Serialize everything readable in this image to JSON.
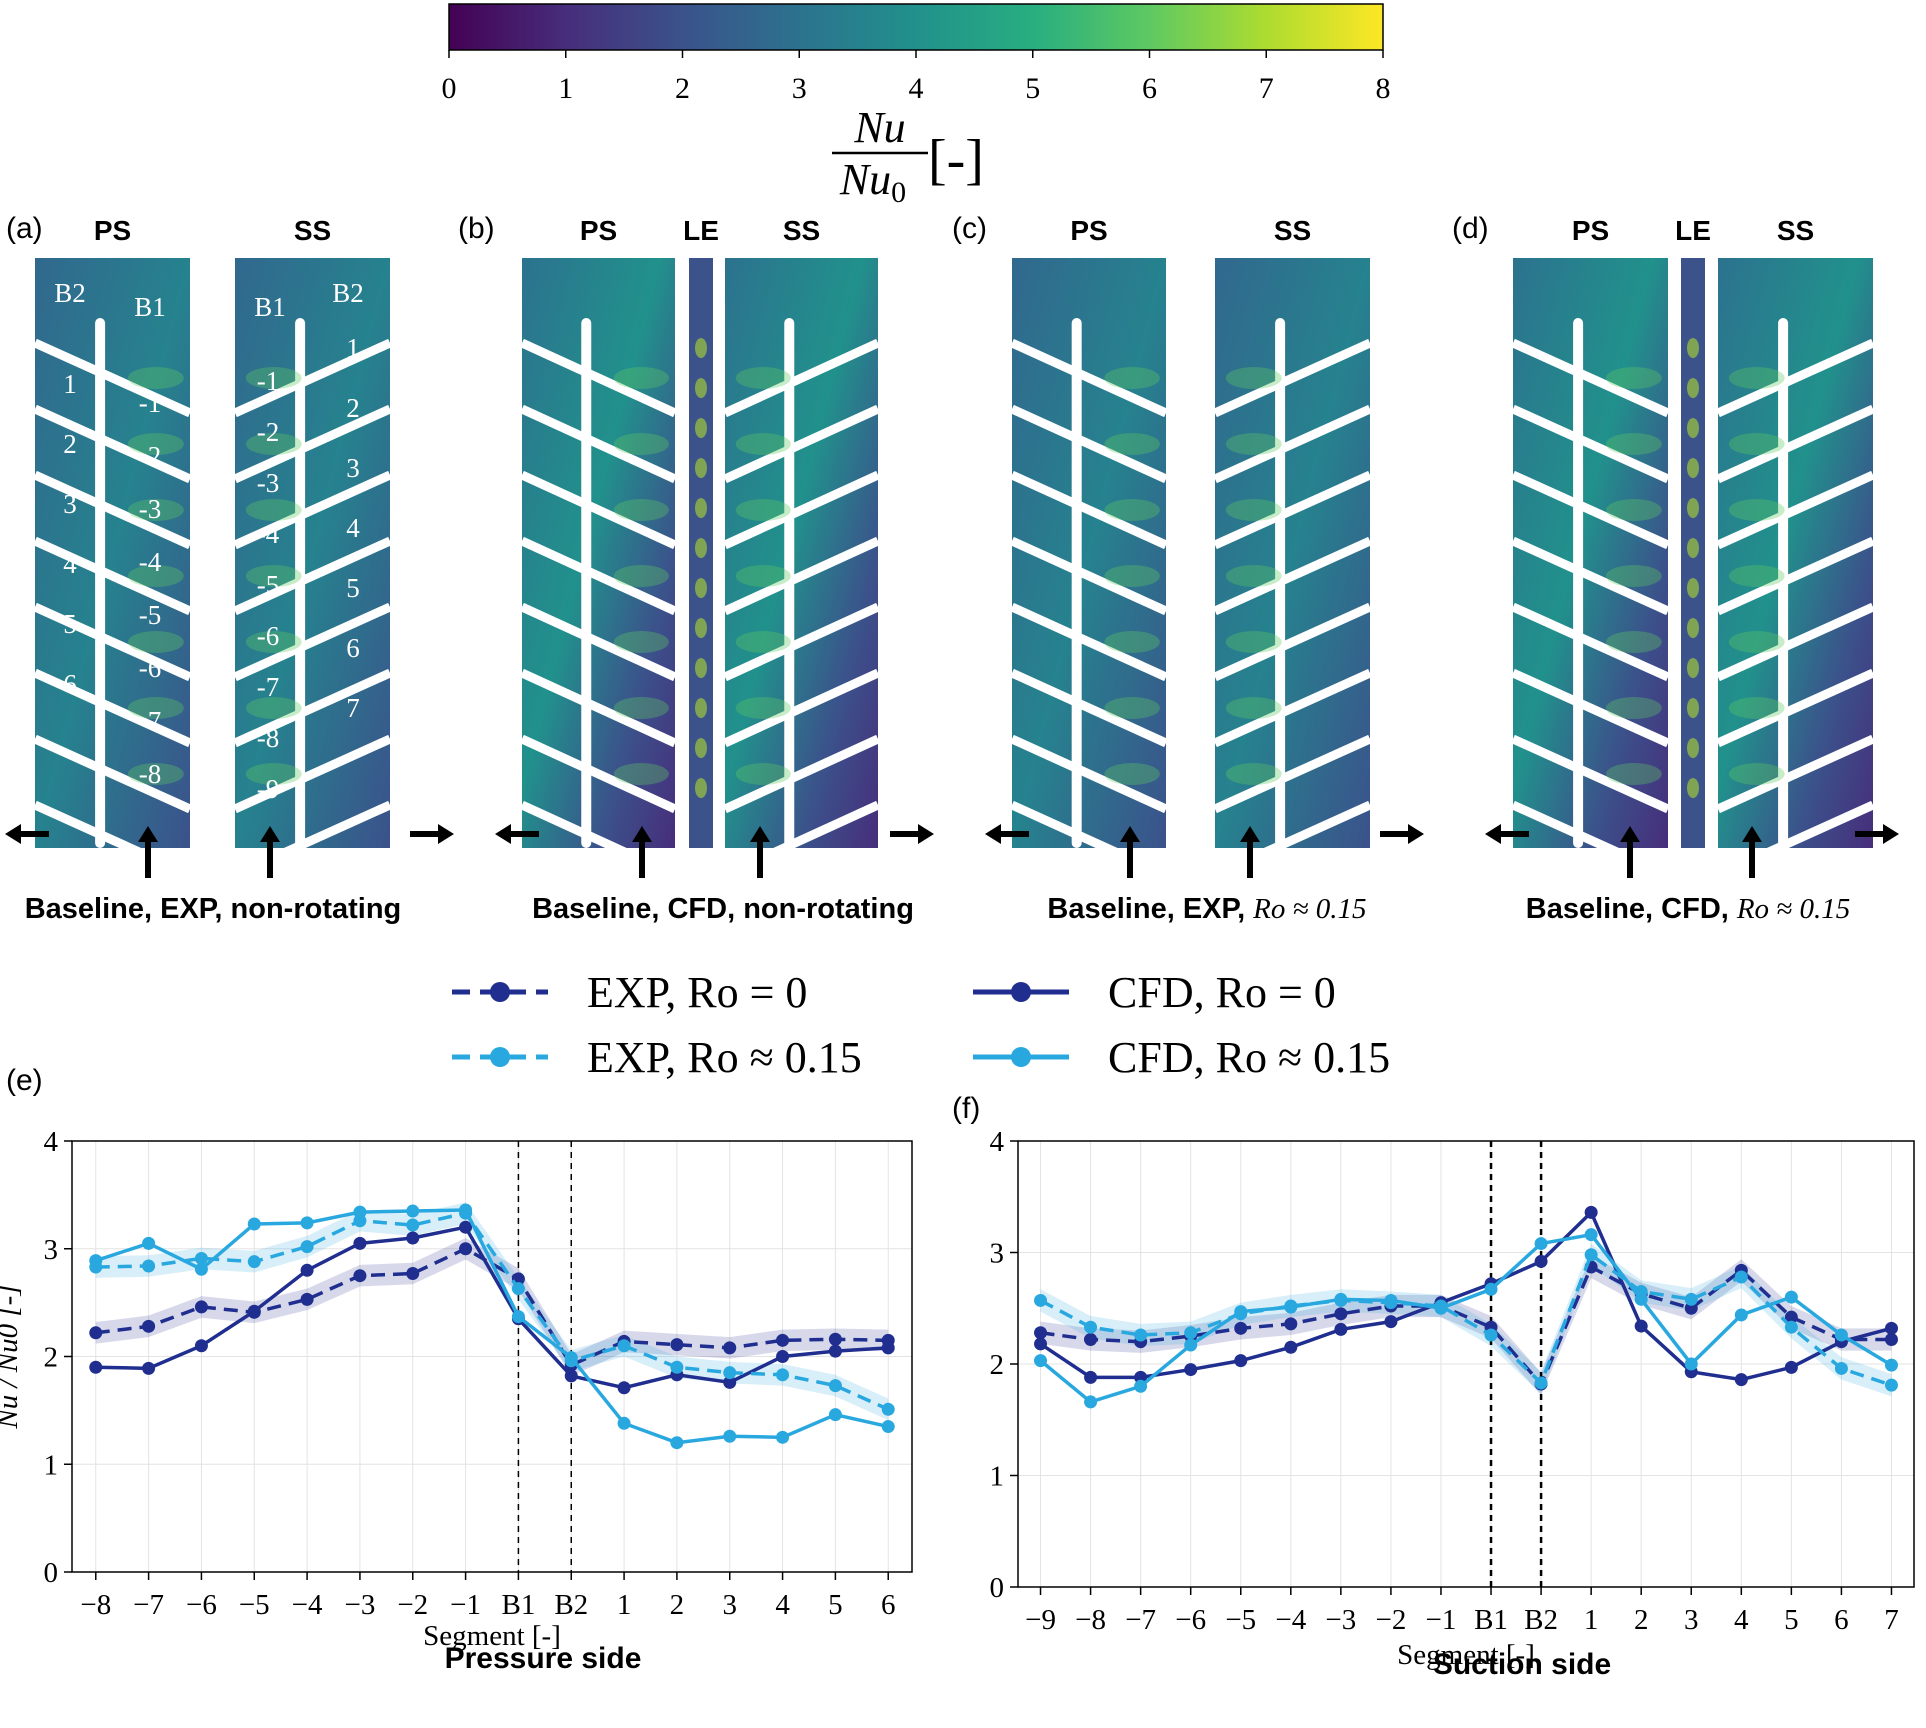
{
  "colorbar": {
    "ticks": [
      "0",
      "1",
      "2",
      "3",
      "4",
      "5",
      "6",
      "7",
      "8"
    ],
    "range": [
      0,
      8
    ],
    "label_num": "Nu",
    "label_den": "Nu",
    "label_den_sub": "0",
    "label_unit": "[-]",
    "colors": [
      "#440154",
      "#472d7b",
      "#3b528b",
      "#2c728e",
      "#21918c",
      "#28ae80",
      "#5ec962",
      "#addc30",
      "#fde725"
    ]
  },
  "panels": [
    {
      "tag": "(a)",
      "sides": [
        "PS",
        "SS"
      ],
      "has_le": false,
      "caption": "Baseline, EXP, non-rotating",
      "caption_math": "",
      "kind": "exp"
    },
    {
      "tag": "(b)",
      "sides": [
        "PS",
        "LE",
        "SS"
      ],
      "has_le": true,
      "caption": "Baseline, CFD, non-rotating",
      "caption_math": "",
      "kind": "cfd"
    },
    {
      "tag": "(c)",
      "sides": [
        "PS",
        "SS"
      ],
      "has_le": false,
      "caption": "Baseline, EXP,",
      "caption_math": "Ro ≈ 0.15",
      "kind": "exp"
    },
    {
      "tag": "(d)",
      "sides": [
        "PS",
        "LE",
        "SS"
      ],
      "has_le": true,
      "caption": "Baseline, CFD,",
      "caption_math": "Ro ≈ 0.15",
      "kind": "cfd"
    }
  ],
  "panel_a_labels": {
    "ps_top": [
      "B2",
      "B1"
    ],
    "ss_top": [
      "B1",
      "B2"
    ],
    "ps_outer": [
      "1",
      "2",
      "3",
      "4",
      "5",
      "6"
    ],
    "ps_inner": [
      "-1",
      "-2",
      "-3",
      "-4",
      "-5",
      "-6",
      "-7",
      "-8"
    ],
    "ss_inner": [
      "-1",
      "-2",
      "-3",
      "-4",
      "-5",
      "-6",
      "-7",
      "-8",
      "-9"
    ],
    "ss_outer": [
      "1",
      "2",
      "3",
      "4",
      "5",
      "6",
      "7"
    ]
  },
  "legend": [
    {
      "label": "EXP, Ro = 0",
      "color": "#1f2e8f",
      "dash": true
    },
    {
      "label": "CFD, Ro = 0",
      "color": "#1f2e8f",
      "dash": false
    },
    {
      "label": "EXP, Ro ≈ 0.15",
      "color": "#29a8e0",
      "dash": true
    },
    {
      "label": "CFD, Ro ≈ 0.15",
      "color": "#29a8e0",
      "dash": false
    }
  ],
  "chart_data": [
    {
      "type": "line",
      "tag": "(e)",
      "title": "Pressure side",
      "xlabel": "Segment [-]",
      "ylabel": "Nu / Nu0 [-]",
      "ylim": [
        0,
        4
      ],
      "yticks": [
        "0",
        "1",
        "2",
        "3",
        "4"
      ],
      "categories": [
        "−8",
        "−7",
        "−6",
        "−5",
        "−4",
        "−3",
        "−2",
        "−1",
        "B1",
        "B2",
        "1",
        "2",
        "3",
        "4",
        "5",
        "6"
      ],
      "vlines": [
        "B1",
        "B2"
      ],
      "grid": true,
      "series": [
        {
          "name": "EXP, Ro = 0",
          "values": [
            2.22,
            2.28,
            2.46,
            2.41,
            2.53,
            2.75,
            2.77,
            3.0,
            2.72,
            1.92,
            2.14,
            2.11,
            2.08,
            2.15,
            2.16,
            2.15
          ]
        },
        {
          "name": "CFD, Ro = 0",
          "values": [
            1.9,
            1.89,
            2.1,
            2.42,
            2.8,
            3.05,
            3.1,
            3.2,
            2.35,
            1.82,
            1.71,
            1.83,
            1.76,
            2.0,
            2.05,
            2.08
          ]
        },
        {
          "name": "EXP, Ro ≈ 0.15",
          "values": [
            2.83,
            2.84,
            2.91,
            2.88,
            3.02,
            3.26,
            3.22,
            3.33,
            2.63,
            1.96,
            2.1,
            1.9,
            1.85,
            1.83,
            1.73,
            1.51
          ]
        },
        {
          "name": "CFD, Ro ≈ 0.15",
          "values": [
            2.89,
            3.05,
            2.81,
            3.23,
            3.24,
            3.34,
            3.35,
            3.36,
            2.37,
            1.99,
            1.38,
            1.2,
            1.26,
            1.25,
            1.46,
            1.35
          ]
        }
      ]
    },
    {
      "type": "line",
      "tag": "(f)",
      "title": "Suction side",
      "xlabel": "Segment [-]",
      "ylabel": "",
      "ylim": [
        0,
        4
      ],
      "yticks": [
        "0",
        "1",
        "2",
        "3",
        "4"
      ],
      "categories": [
        "−9",
        "−8",
        "−7",
        "−6",
        "−5",
        "−4",
        "−3",
        "−2",
        "−1",
        "B1",
        "B2",
        "1",
        "2",
        "3",
        "4",
        "5",
        "6",
        "7"
      ],
      "vlines": [
        "B1",
        "B2"
      ],
      "grid": true,
      "series": [
        {
          "name": "EXP, Ro = 0",
          "values": [
            2.28,
            2.22,
            2.2,
            2.25,
            2.32,
            2.36,
            2.45,
            2.52,
            2.52,
            2.33,
            1.82,
            2.87,
            2.63,
            2.5,
            2.84,
            2.42,
            2.22,
            2.22
          ]
        },
        {
          "name": "CFD, Ro = 0",
          "values": [
            2.18,
            1.88,
            1.88,
            1.95,
            2.03,
            2.15,
            2.31,
            2.38,
            2.55,
            2.72,
            2.92,
            3.36,
            2.34,
            1.93,
            1.86,
            1.97,
            2.2,
            2.32
          ]
        },
        {
          "name": "EXP, Ro ≈ 0.15",
          "values": [
            2.57,
            2.33,
            2.26,
            2.28,
            2.45,
            2.52,
            2.57,
            2.55,
            2.52,
            2.26,
            1.83,
            2.98,
            2.65,
            2.58,
            2.78,
            2.33,
            1.96,
            1.81
          ]
        },
        {
          "name": "CFD, Ro ≈ 0.15",
          "values": [
            2.03,
            1.66,
            1.8,
            2.17,
            2.47,
            2.51,
            2.58,
            2.57,
            2.5,
            2.67,
            3.08,
            3.16,
            2.58,
            2.0,
            2.44,
            2.6,
            2.26,
            1.99
          ]
        }
      ]
    }
  ]
}
